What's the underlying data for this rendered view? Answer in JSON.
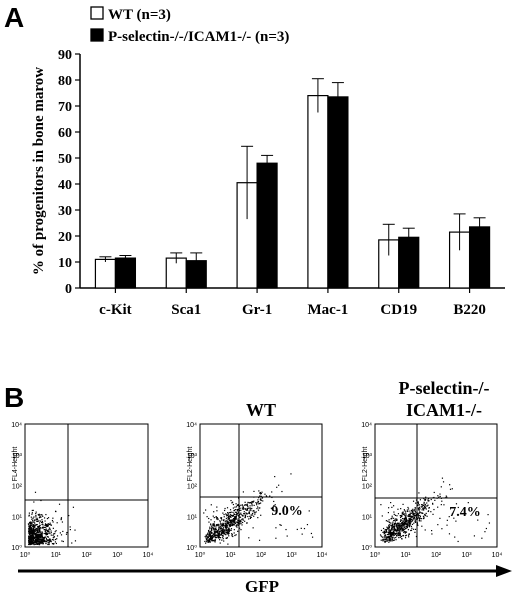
{
  "panel_a": {
    "letter": "A"
  },
  "panel_b": {
    "letter": "B",
    "x_axis_label": "GFP",
    "plots": [
      {
        "title_lines": [],
        "y_channel": "FL4-Height",
        "percent": "",
        "x_ticks": [
          "10⁰",
          "10¹",
          "10²",
          "10³",
          "10⁴"
        ],
        "y_ticks": [
          "10⁰",
          "10¹",
          "10²",
          "10³",
          "10⁴"
        ]
      },
      {
        "title_lines": [
          "WT"
        ],
        "y_channel": "FL2-Height",
        "percent": "9.0%",
        "x_ticks": [
          "10⁰",
          "10¹",
          "10²",
          "10³",
          "10⁴"
        ],
        "y_ticks": [
          "10⁰",
          "10¹",
          "10²",
          "10³",
          "10⁴"
        ]
      },
      {
        "title_lines": [
          "P-selectin-/-",
          "ICAM1-/-"
        ],
        "y_channel": "FL2-Height",
        "percent": "7.4%",
        "x_ticks": [
          "10⁰",
          "10¹",
          "10²",
          "10³",
          "10⁴"
        ],
        "y_ticks": [
          "10⁰",
          "10¹",
          "10²",
          "10³",
          "10⁴"
        ]
      }
    ]
  },
  "chart_data": {
    "type": "bar",
    "title": "",
    "xlabel": "",
    "ylabel": "% of progenitors in bone marow",
    "ylim": [
      0,
      90
    ],
    "yticks": [
      0,
      10,
      20,
      30,
      40,
      50,
      60,
      70,
      80,
      90
    ],
    "grid": false,
    "legend_position": "top-left",
    "categories": [
      "c-Kit",
      "Sca1",
      "Gr-1",
      "Mac-1",
      "CD19",
      "B220"
    ],
    "series": [
      {
        "name": "WT (n=3)",
        "color": "#ffffff",
        "values": [
          11,
          11.5,
          40.5,
          74,
          18.5,
          21.5
        ],
        "errors": [
          1,
          2,
          14,
          6.5,
          6,
          7
        ]
      },
      {
        "name": "P-selectin-/-/ICAM1-/- (n=3)",
        "color": "#000000",
        "values": [
          11.5,
          10.5,
          48,
          73.5,
          19.5,
          23.5
        ],
        "errors": [
          1,
          3,
          3,
          5.5,
          3.5,
          3.5
        ]
      }
    ]
  }
}
